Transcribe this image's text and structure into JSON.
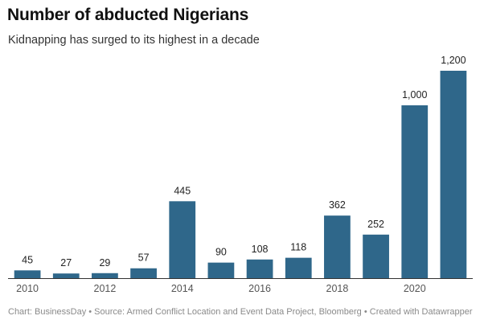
{
  "chart_data": {
    "type": "bar",
    "title": "Number of abducted Nigerians",
    "subtitle": "Kidnapping has surged to its highest in a decade",
    "xlabel": "",
    "ylabel": "",
    "categories": [
      "2010",
      "2011",
      "2012",
      "2013",
      "2014",
      "2015",
      "2016",
      "2017",
      "2018",
      "2019",
      "2020",
      "2021"
    ],
    "values": [
      45,
      27,
      29,
      57,
      445,
      90,
      108,
      118,
      362,
      252,
      1000,
      1200
    ],
    "value_labels": [
      "45",
      "27",
      "29",
      "57",
      "445",
      "90",
      "108",
      "118",
      "362",
      "252",
      "1,000",
      "1,200"
    ],
    "x_tick_labels": [
      "2010",
      "2012",
      "2014",
      "2016",
      "2018",
      "2020"
    ],
    "ylim": [
      0,
      1200
    ],
    "grid": false,
    "legend": "none",
    "bar_color": "#2f678a"
  },
  "footer": "Chart: BusinessDay • Source: Armed Conflict Location and Event Data Project, Bloomberg • Created with Datawrapper"
}
